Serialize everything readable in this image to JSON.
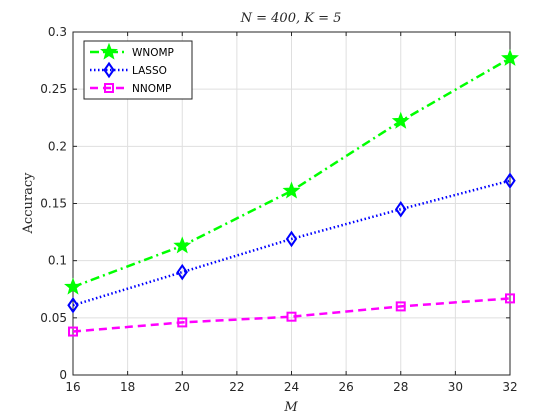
{
  "chart_data": {
    "type": "line",
    "title": "N = 400, K = 5",
    "xlabel": "M",
    "ylabel": "Accuracy",
    "x": [
      16,
      20,
      24,
      28,
      32
    ],
    "xlim": [
      16,
      32
    ],
    "ylim": [
      0,
      0.3
    ],
    "xticks": [
      16,
      18,
      20,
      22,
      24,
      26,
      28,
      30,
      32
    ],
    "yticks": [
      0,
      0.05,
      0.1,
      0.15,
      0.2,
      0.25,
      0.3
    ],
    "grid": true,
    "legend_position": "top-left",
    "series": [
      {
        "name": "WNOMP",
        "values": [
          0.077,
          0.113,
          0.161,
          0.222,
          0.277
        ],
        "color": "#00ff00",
        "marker": "star",
        "line_style": "dash-dot"
      },
      {
        "name": "LASSO",
        "values": [
          0.061,
          0.09,
          0.119,
          0.145,
          0.17
        ],
        "color": "#0000ff",
        "marker": "diamond",
        "line_style": "dotted"
      },
      {
        "name": "NNOMP",
        "values": [
          0.038,
          0.046,
          0.051,
          0.06,
          0.067
        ],
        "color": "#ff00ff",
        "marker": "square",
        "line_style": "dashed"
      }
    ]
  }
}
